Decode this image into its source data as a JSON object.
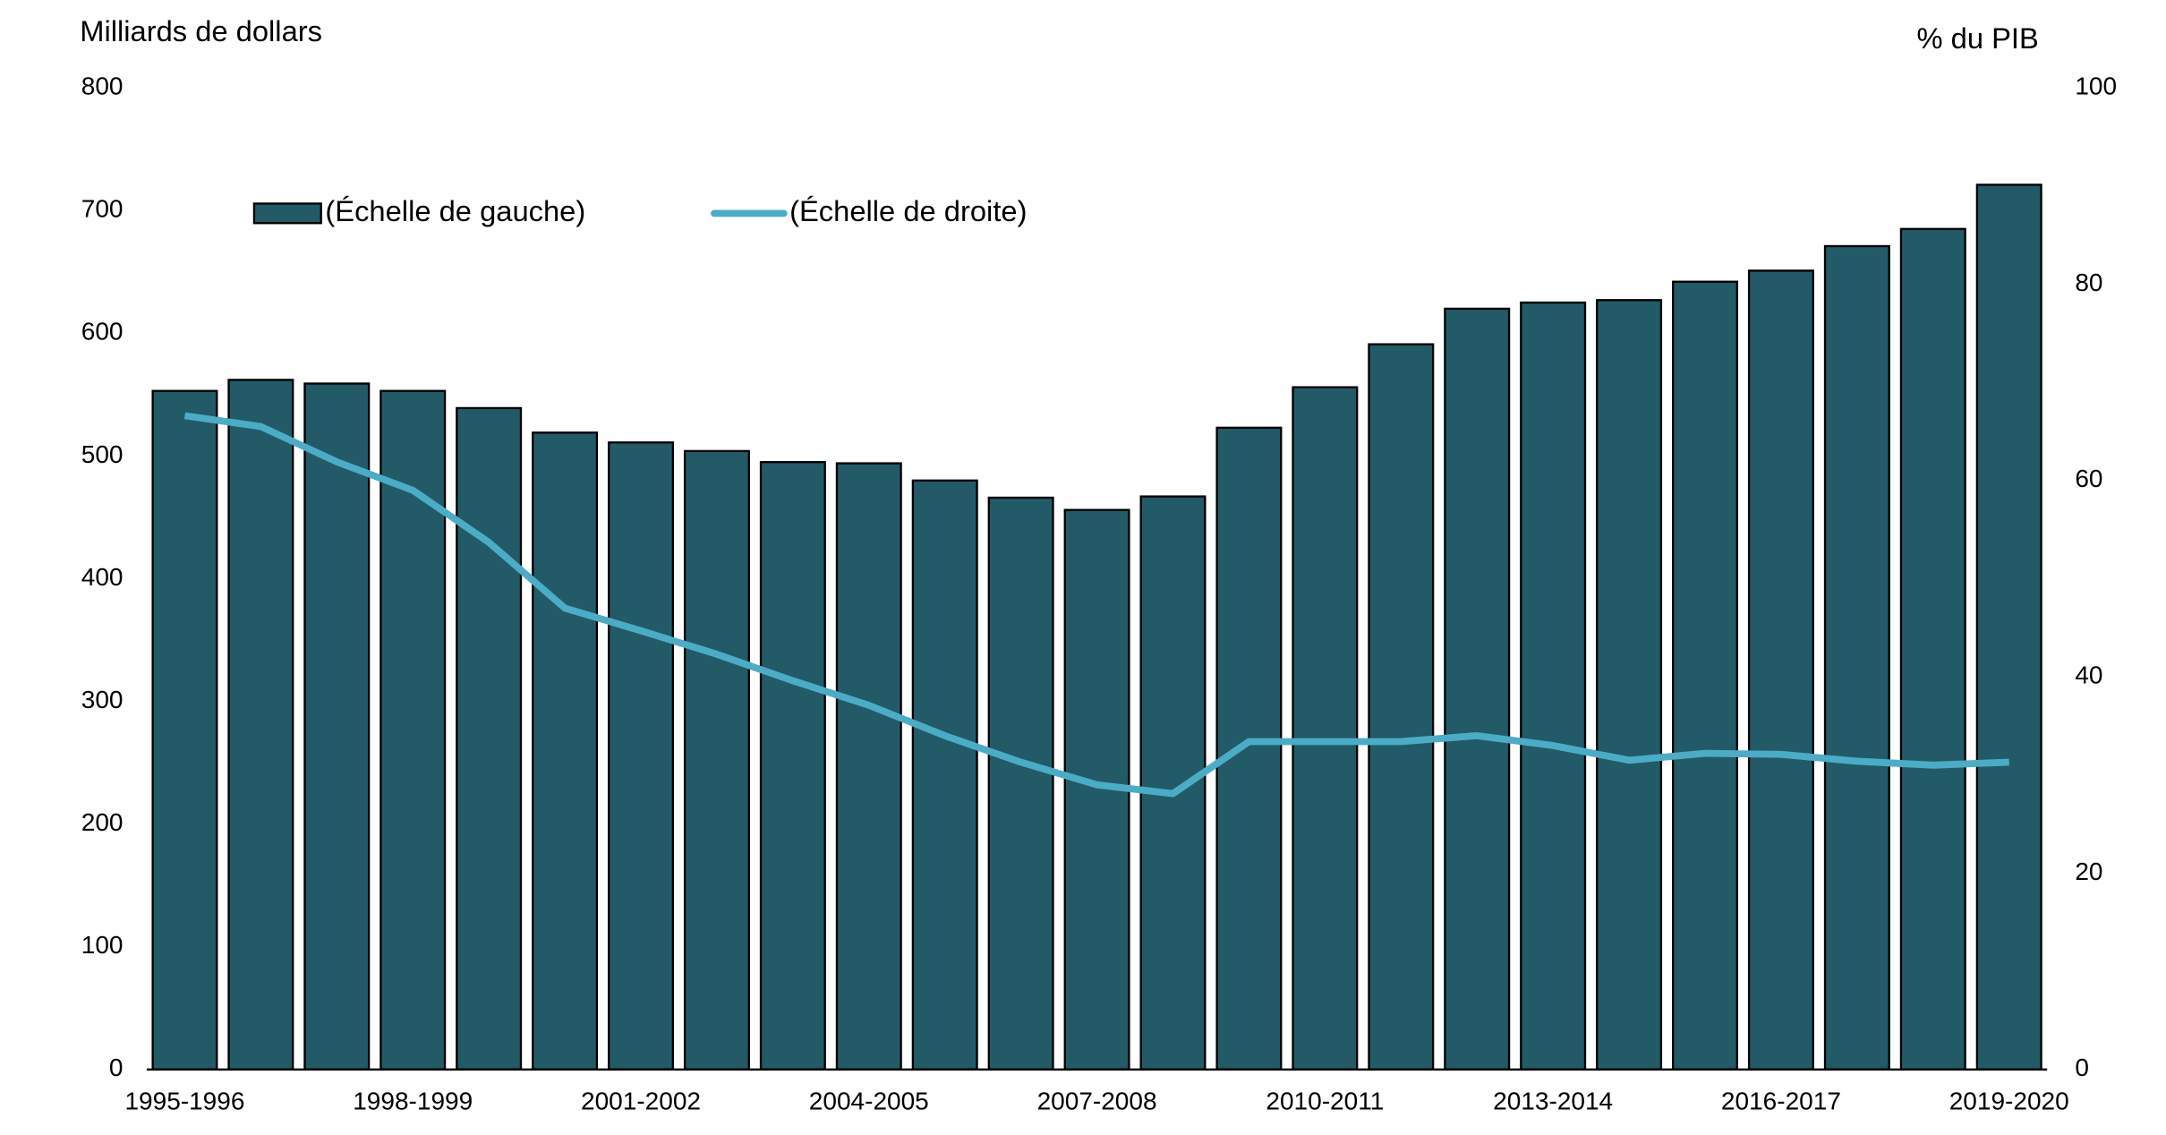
{
  "chart_data": {
    "type": "bar-line",
    "y_label": "Milliards de dollars",
    "y2_label": "% du PIB",
    "categories": [
      "1995-1996",
      null,
      null,
      "1998-1999",
      null,
      null,
      "2001-2002",
      null,
      null,
      "2004-2005",
      null,
      null,
      "2007-2008",
      null,
      null,
      "2010-2011",
      null,
      null,
      "2013-2014",
      null,
      null,
      "2016-2017",
      null,
      null,
      "2019-2020"
    ],
    "series": [
      {
        "name": "(Échelle de gauche)",
        "type": "bar",
        "color": "#235a68",
        "axis": "y",
        "values": [
          553,
          562,
          559,
          553,
          539,
          519,
          511,
          504,
          495,
          494,
          480,
          466,
          456,
          467,
          523,
          556,
          591,
          620,
          625,
          627,
          642,
          651,
          671,
          685,
          721
        ]
      },
      {
        "name": "(Échelle de droite)",
        "type": "line",
        "color": "#4bacc6",
        "axis": "y2",
        "values": [
          66.6,
          65.5,
          61.9,
          59.0,
          53.7,
          47.0,
          44.7,
          42.3,
          39.6,
          37.1,
          34.0,
          31.3,
          29.0,
          28.1,
          33.4,
          33.4,
          33.4,
          34.0,
          33.0,
          31.5,
          32.2,
          32.1,
          31.4,
          31.0,
          31.3
        ]
      }
    ],
    "ylim": [
      0,
      800
    ],
    "yticks": [
      0,
      100,
      200,
      300,
      400,
      500,
      600,
      700,
      800
    ],
    "y2lim": [
      0,
      100
    ],
    "y2ticks": [
      0,
      20,
      40,
      60,
      80,
      100
    ],
    "grid": false
  }
}
